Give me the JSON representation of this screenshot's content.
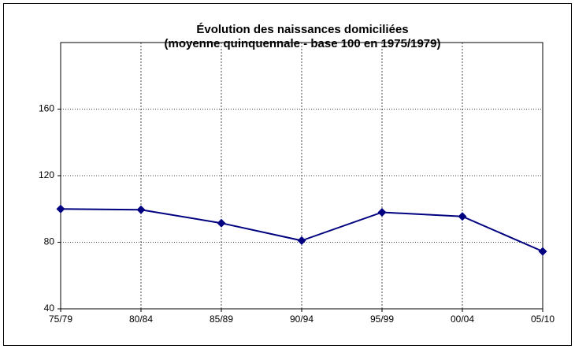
{
  "chart_data": {
    "type": "line",
    "title": "Évolution des naissances domiciliées",
    "subtitle": "(moyenne quinquennale - base 100 en 1975/1979)",
    "categories": [
      "75/79",
      "80/84",
      "85/89",
      "90/94",
      "95/99",
      "00/04",
      "05/10"
    ],
    "series": [
      {
        "name": "Naissances domiciliées",
        "color": "#000080",
        "values": [
          100,
          99.5,
          91.5,
          81,
          98,
          95.5,
          74.5
        ]
      }
    ],
    "ylim": [
      40,
      200
    ],
    "yticks": [
      40,
      80,
      120,
      160
    ],
    "grid": true
  }
}
